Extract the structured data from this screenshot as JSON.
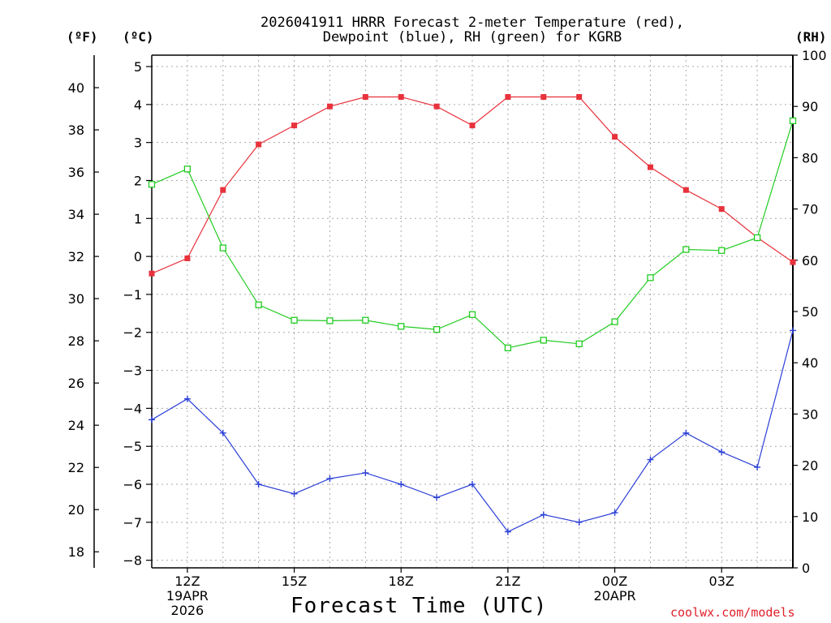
{
  "chart_data": {
    "type": "line",
    "title": "2026041911 HRRR Forecast 2-meter Temperature (red),",
    "subtitle": "Dewpoint (blue), RH (green) for KGRB",
    "xlabel": "Forecast Time (UTC)",
    "units": {
      "fahrenheit": "(ºF)",
      "celsius": "(ºC)",
      "rh": "(RH)"
    },
    "credit": "coolwx.com/models",
    "x_hours": [
      11,
      12,
      13,
      14,
      15,
      16,
      17,
      18,
      19,
      20,
      21,
      22,
      23,
      24,
      25,
      26,
      27,
      28,
      29
    ],
    "x_ticks": [
      {
        "hour": 12,
        "lines": [
          "12Z",
          "19APR",
          "2026"
        ]
      },
      {
        "hour": 15,
        "lines": [
          "15Z"
        ]
      },
      {
        "hour": 18,
        "lines": [
          "18Z"
        ]
      },
      {
        "hour": 21,
        "lines": [
          "21Z"
        ]
      },
      {
        "hour": 24,
        "lines": [
          "00Z",
          "20APR"
        ]
      },
      {
        "hour": 27,
        "lines": [
          "03Z"
        ]
      }
    ],
    "celsius_axis": {
      "range": [
        -8.2,
        5.3
      ],
      "ticks": [
        -8,
        -7,
        -6,
        -5,
        -4,
        -3,
        -2,
        -1,
        0,
        1,
        2,
        3,
        4,
        5
      ],
      "tick_labels": [
        "−8",
        "−7",
        "−6",
        "−5",
        "−4",
        "−3",
        "−2",
        "−1",
        "0",
        "1",
        "2",
        "3",
        "4",
        "5"
      ]
    },
    "fahrenheit_axis": {
      "ticks": [
        18,
        20,
        22,
        24,
        26,
        28,
        30,
        32,
        34,
        36,
        38,
        40
      ]
    },
    "rh_axis": {
      "range": [
        0,
        100
      ],
      "ticks": [
        0,
        10,
        20,
        30,
        40,
        50,
        60,
        70,
        80,
        90,
        100
      ]
    },
    "series": [
      {
        "name": "Temperature",
        "color": "#e8323c",
        "marker": "filled-square",
        "axis": "celsius",
        "values": [
          -0.45,
          -0.05,
          1.75,
          2.95,
          3.45,
          3.95,
          4.2,
          4.2,
          3.95,
          3.45,
          4.2,
          4.2,
          4.2,
          3.15,
          2.35,
          1.75,
          1.25,
          0.5,
          -0.15
        ]
      },
      {
        "name": "Dewpoint",
        "color": "#2b3fd6",
        "marker": "plus",
        "axis": "celsius",
        "values": [
          -4.3,
          -3.75,
          -4.65,
          -6.0,
          -6.25,
          -5.85,
          -5.7,
          -6.0,
          -6.35,
          -6.0,
          -7.25,
          -6.8,
          -7.0,
          -6.75,
          -5.35,
          -4.65,
          -5.15,
          -5.55,
          -1.95
        ]
      },
      {
        "name": "RH",
        "color": "#22cc22",
        "marker": "open-square",
        "axis": "rh",
        "values": [
          74.8,
          77.8,
          62.4,
          51.3,
          48.3,
          48.2,
          48.3,
          47.1,
          46.5,
          49.4,
          42.9,
          44.4,
          43.7,
          48.0,
          56.6,
          62.1,
          61.9,
          64.4,
          87.2
        ]
      }
    ]
  }
}
